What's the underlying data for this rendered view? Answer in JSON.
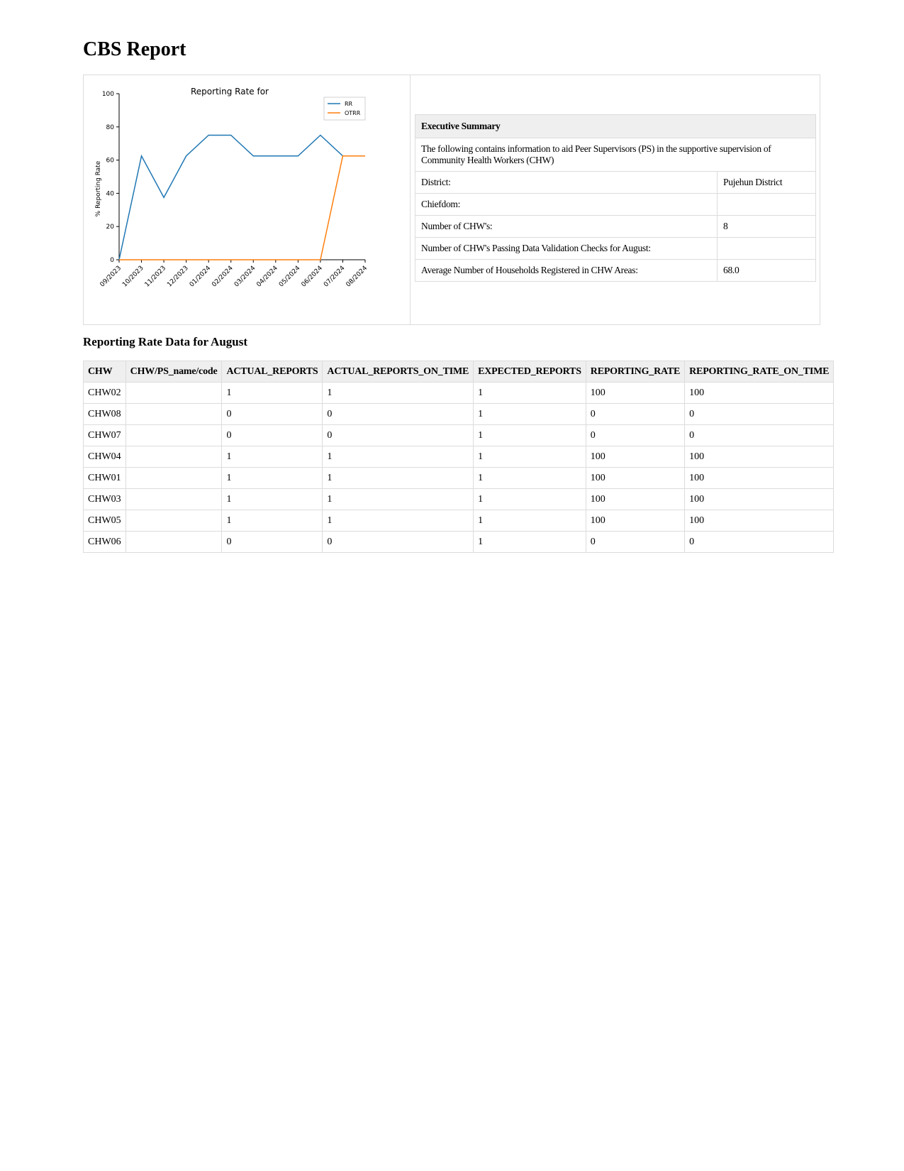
{
  "page": {
    "title": "CBS Report"
  },
  "executive_summary": {
    "header": "Executive Summary",
    "description": "The following contains information to aid Peer Supervisors (PS) in the supportive supervision of Community Health Workers (CHW)",
    "rows": [
      {
        "label": "District:",
        "value": "Pujehun District"
      },
      {
        "label": "Chiefdom:",
        "value": ""
      },
      {
        "label": "Number of CHW's:",
        "value": "8"
      },
      {
        "label": "Number of CHW's Passing Data Validation Checks for August:",
        "value": ""
      },
      {
        "label": "Average Number of Households Registered in CHW Areas:",
        "value": "68.0"
      }
    ]
  },
  "reporting_section": {
    "title": "Reporting Rate Data for August"
  },
  "table": {
    "columns": [
      "CHW",
      "CHW/PS_name/code",
      "ACTUAL_REPORTS",
      "ACTUAL_REPORTS_ON_TIME",
      "EXPECTED_REPORTS",
      "REPORTING_RATE",
      "REPORTING_RATE_ON_TIME"
    ],
    "rows": [
      [
        "CHW02",
        "",
        "1",
        "1",
        "1",
        "100",
        "100"
      ],
      [
        "CHW08",
        "",
        "0",
        "0",
        "1",
        "0",
        "0"
      ],
      [
        "CHW07",
        "",
        "0",
        "0",
        "1",
        "0",
        "0"
      ],
      [
        "CHW04",
        "",
        "1",
        "1",
        "1",
        "100",
        "100"
      ],
      [
        "CHW01",
        "",
        "1",
        "1",
        "1",
        "100",
        "100"
      ],
      [
        "CHW03",
        "",
        "1",
        "1",
        "1",
        "100",
        "100"
      ],
      [
        "CHW05",
        "",
        "1",
        "1",
        "1",
        "100",
        "100"
      ],
      [
        "CHW06",
        "",
        "0",
        "0",
        "1",
        "0",
        "0"
      ]
    ]
  },
  "chart_data": {
    "type": "line",
    "title": "Reporting Rate for",
    "xlabel": "",
    "ylabel": "% Reporting Rate",
    "ylim": [
      0,
      100
    ],
    "yticks": [
      0,
      20,
      40,
      60,
      80,
      100
    ],
    "categories": [
      "09/2023",
      "10/2023",
      "11/2023",
      "12/2023",
      "01/2024",
      "02/2024",
      "03/2024",
      "04/2024",
      "05/2024",
      "06/2024",
      "07/2024",
      "08/2024"
    ],
    "series": [
      {
        "name": "RR",
        "color": "#1f77b4",
        "values": [
          0,
          62.5,
          37.5,
          62.5,
          75,
          75,
          62.5,
          62.5,
          62.5,
          75,
          62.5,
          62.5
        ]
      },
      {
        "name": "OTRR",
        "color": "#ff7f0e",
        "values": [
          0,
          0,
          0,
          0,
          0,
          0,
          0,
          0,
          0,
          0,
          62.5,
          62.5
        ]
      }
    ],
    "legend": "top-right",
    "grid": false
  }
}
